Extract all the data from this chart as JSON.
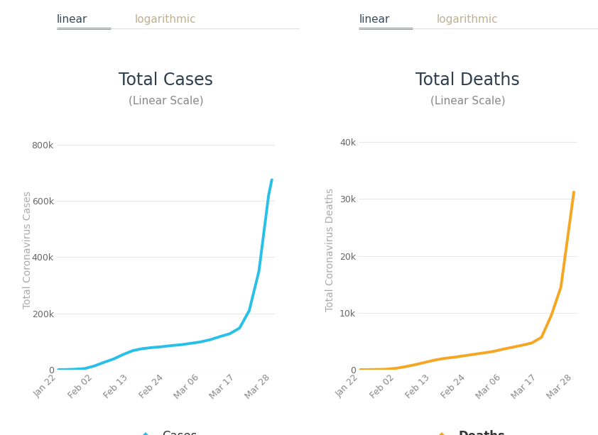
{
  "cases_x": [
    0,
    2,
    5,
    8,
    11,
    14,
    17,
    20,
    23,
    26,
    29,
    32,
    35,
    38,
    41,
    44,
    47,
    50,
    53,
    56,
    59,
    62,
    65,
    66
  ],
  "cases_y": [
    580,
    600,
    1800,
    4000,
    13000,
    26000,
    38000,
    54000,
    68000,
    75000,
    79000,
    82000,
    86000,
    89000,
    94000,
    99000,
    107000,
    118000,
    128000,
    148000,
    210000,
    350000,
    620000,
    675000
  ],
  "deaths_x": [
    0,
    2,
    5,
    8,
    11,
    14,
    17,
    20,
    23,
    26,
    29,
    32,
    35,
    38,
    41,
    44,
    47,
    50,
    53,
    56,
    59,
    62,
    65,
    66
  ],
  "deaths_y": [
    17,
    18,
    50,
    90,
    260,
    550,
    900,
    1300,
    1700,
    2000,
    2200,
    2450,
    2700,
    2950,
    3200,
    3600,
    3950,
    4300,
    4700,
    5700,
    9500,
    14500,
    27000,
    31200
  ],
  "x_tick_labels": [
    "Jan 22",
    "Feb 02",
    "Feb 13",
    "Feb 24",
    "Mar 06",
    "Mar 17",
    "Mar 28"
  ],
  "x_tick_positions": [
    0,
    11,
    22,
    33,
    44,
    55,
    66
  ],
  "cases_color": "#28c0e8",
  "deaths_color": "#f5a623",
  "tab_active_color": "#34495e",
  "tab_inactive_color": "#c0b090",
  "tab_underline_color": "#28c0e8",
  "separator_color": "#e0e0e0",
  "background_color": "#ffffff",
  "grid_color": "#e8e8e8",
  "title_cases": "Total Cases",
  "title_deaths": "Total Deaths",
  "subtitle": "(Linear Scale)",
  "ylabel_cases": "Total Coronavirus Cases",
  "ylabel_deaths": "Total Coronavirus Deaths",
  "cases_ylim": [
    0,
    850000
  ],
  "deaths_ylim": [
    0,
    42000
  ],
  "cases_yticks": [
    0,
    200000,
    400000,
    600000,
    800000
  ],
  "cases_ytick_labels": [
    "0",
    "200k",
    "400k",
    "600k",
    "800k"
  ],
  "deaths_yticks": [
    0,
    10000,
    20000,
    30000,
    40000
  ],
  "deaths_ytick_labels": [
    "0",
    "10k",
    "20k",
    "30k",
    "40k"
  ],
  "legend_cases": "Cases",
  "legend_deaths": "Deaths",
  "tab_linear": "linear",
  "tab_log": "logarithmic",
  "title_fontsize": 17,
  "subtitle_fontsize": 11,
  "tick_fontsize": 9,
  "ylabel_fontsize": 10,
  "tab_fontsize": 11,
  "legend_fontsize": 12
}
